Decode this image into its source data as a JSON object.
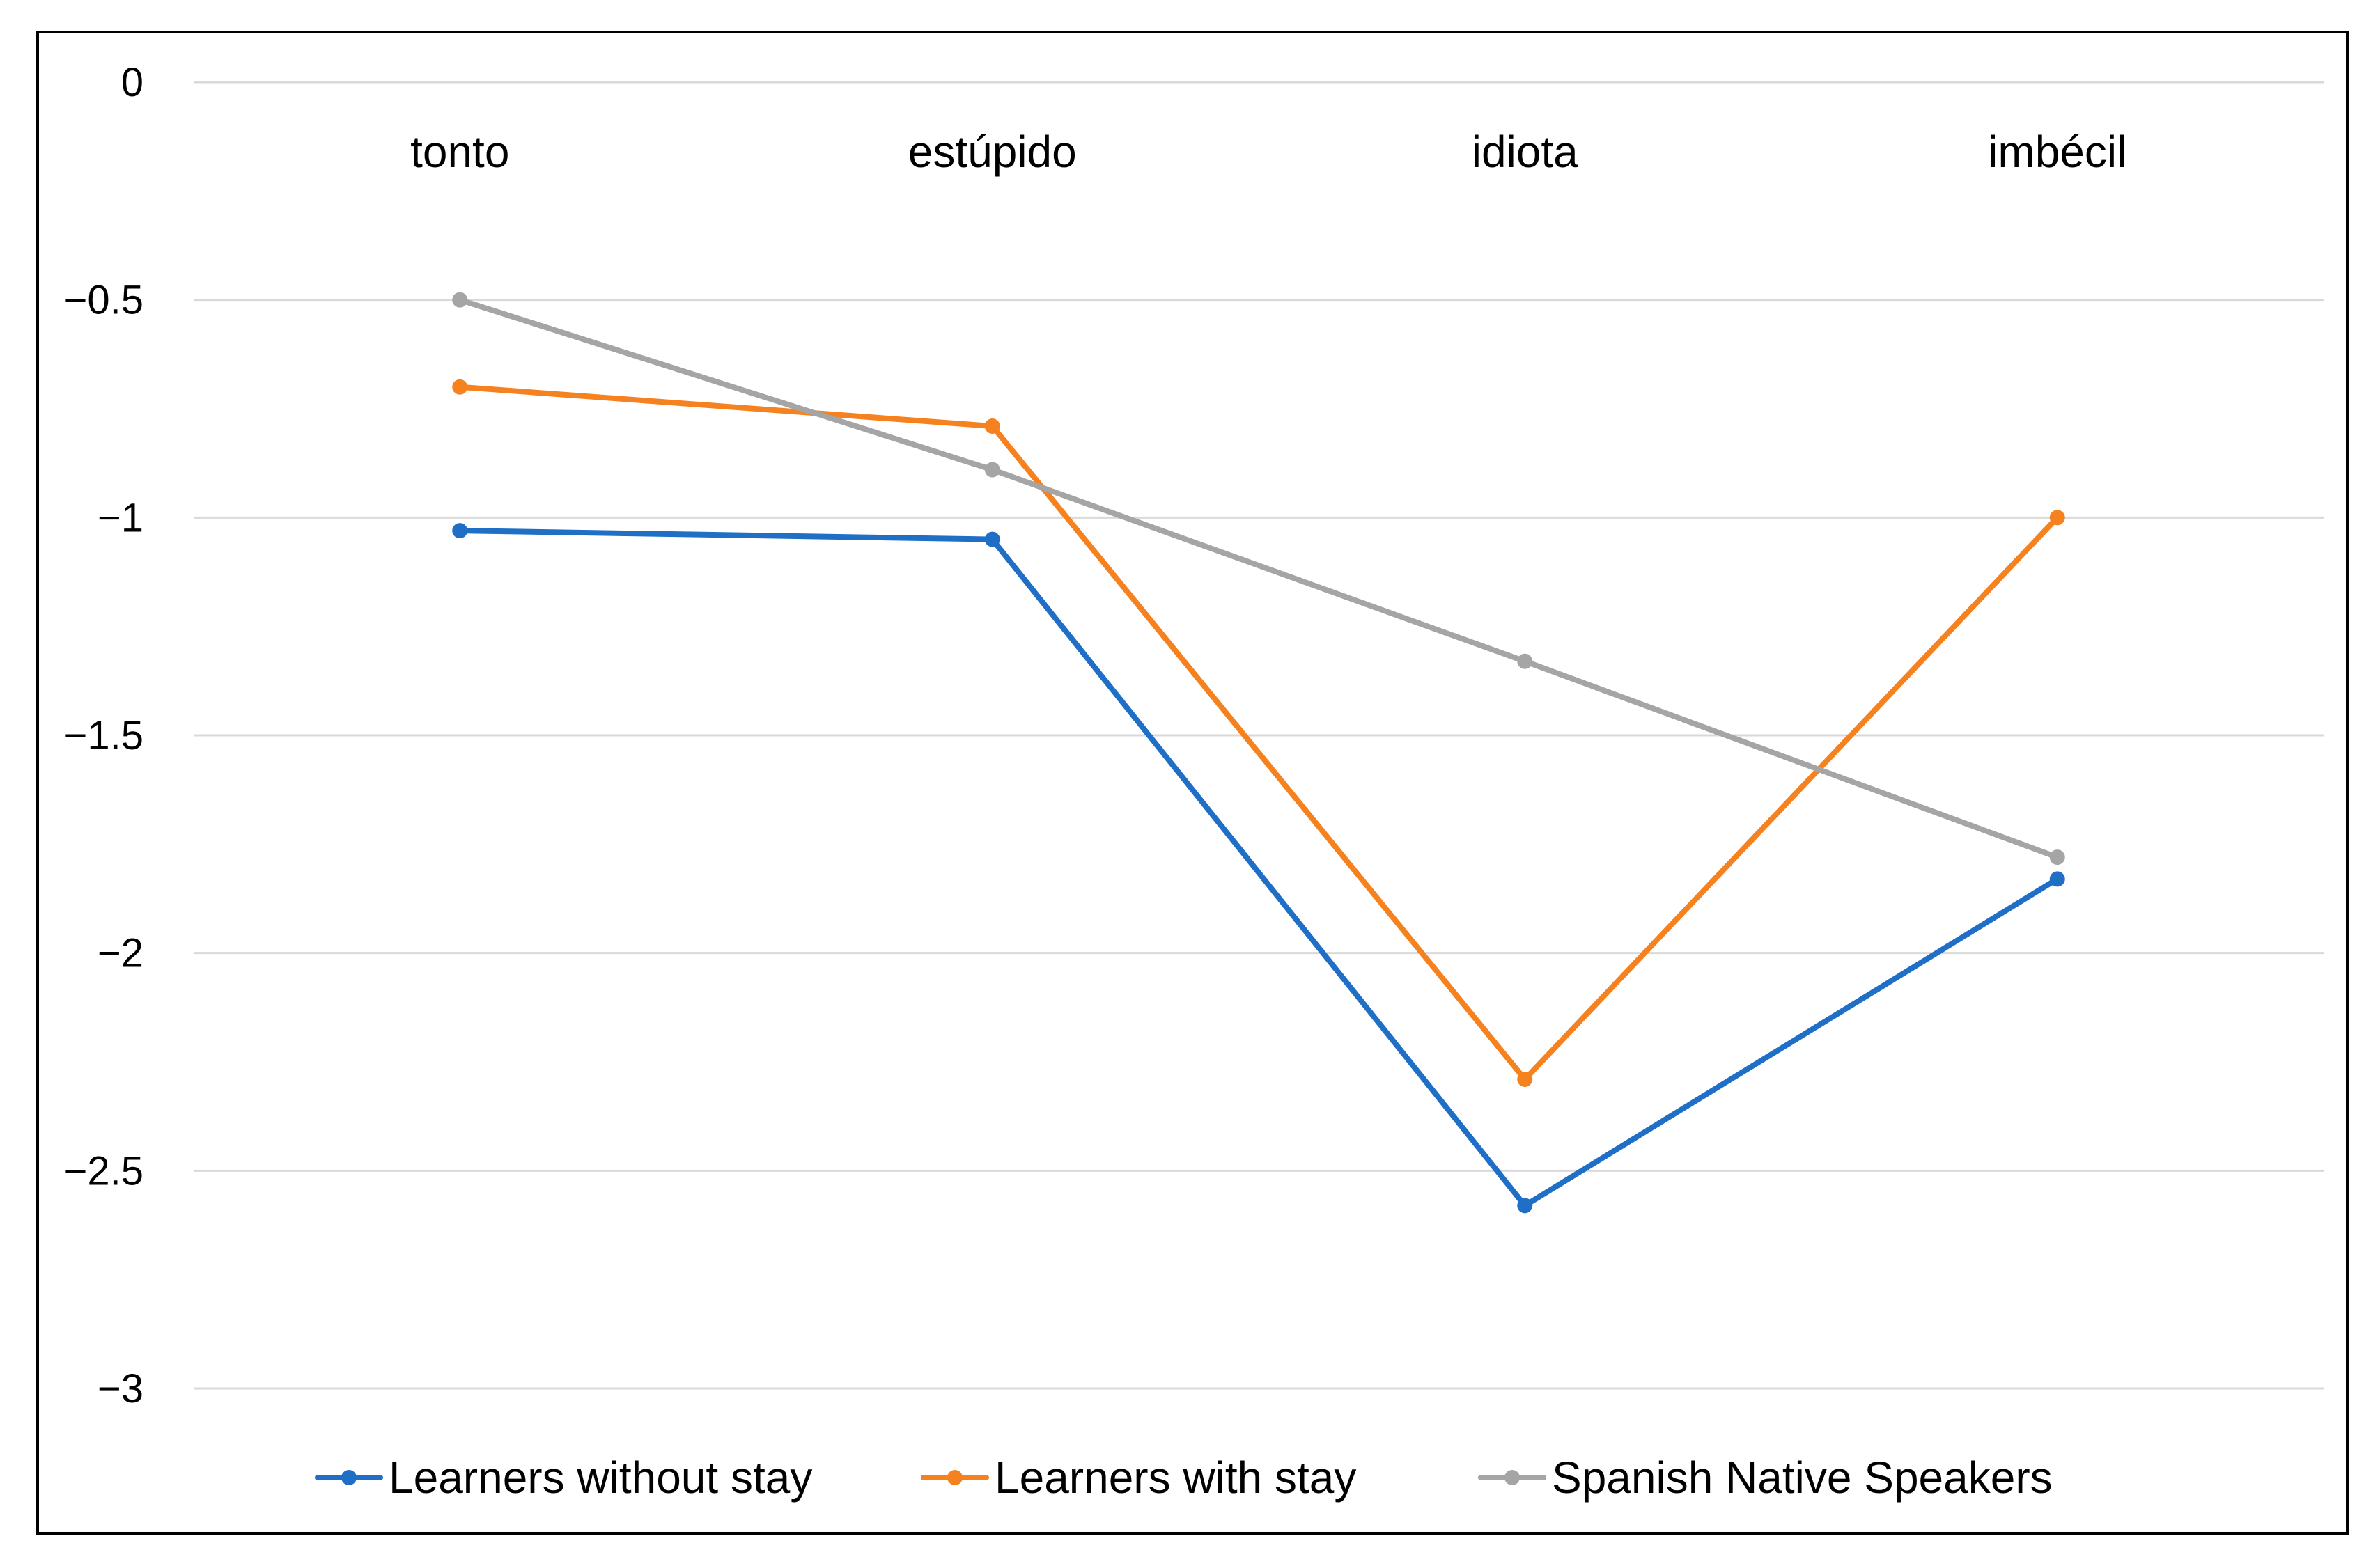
{
  "chart_data": {
    "type": "line",
    "title": "",
    "xlabel": "",
    "ylabel": "",
    "categories": [
      "tonto",
      "estúpido",
      "idiota",
      "imbécil"
    ],
    "y_ticks": [
      0,
      -0.5,
      -1,
      -1.5,
      -2,
      -2.5,
      -3
    ],
    "y_tick_labels": [
      "0",
      "−0.5",
      "−1",
      "−1.5",
      "−2",
      "−2.5",
      "−3"
    ],
    "ylim": [
      -3,
      0
    ],
    "grid": true,
    "category_labels_position": "top",
    "legend_position": "bottom",
    "series": [
      {
        "name": "Learners without stay",
        "color": "#1f6fc6",
        "values": [
          -1.03,
          -1.05,
          -2.58,
          -1.83
        ]
      },
      {
        "name": "Learners with stay",
        "color": "#f5821f",
        "values": [
          -0.7,
          -0.79,
          -2.29,
          -1.0
        ]
      },
      {
        "name": "Spanish Native Speakers",
        "color": "#a5a5a5",
        "values": [
          -0.5,
          -0.89,
          -1.33,
          -1.78
        ]
      }
    ]
  }
}
